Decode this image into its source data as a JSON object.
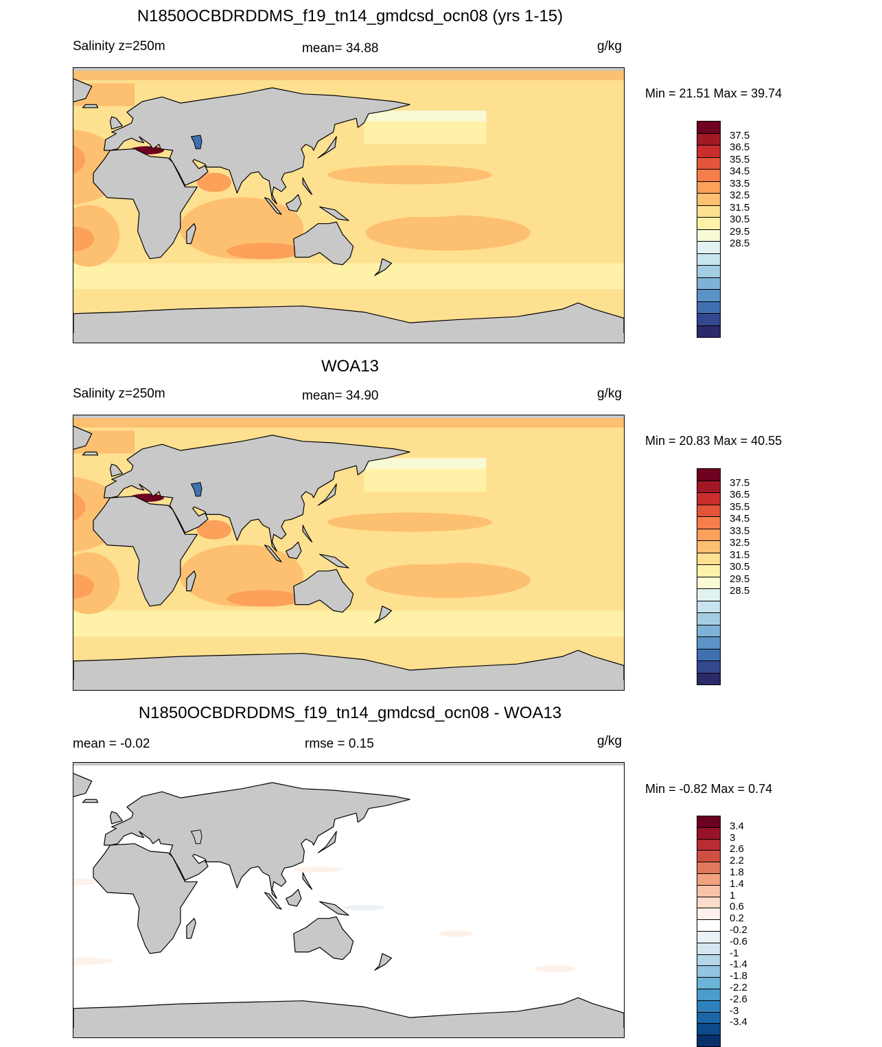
{
  "colors": {
    "land": "#c8c8c8",
    "salinity_palette": [
      "#2b2a6b",
      "#34478f",
      "#4170b0",
      "#5b93c6",
      "#7eb2d7",
      "#a4cde3",
      "#c8e4ef",
      "#e2f2f1",
      "#f8fad6",
      "#fff2a8",
      "#fee091",
      "#fdc070",
      "#fca05a",
      "#f67e4b",
      "#e3553b",
      "#c92e2e",
      "#a21926",
      "#6e0020"
    ],
    "diff_palette": [
      "#08306b",
      "#0d4a8c",
      "#1c66a8",
      "#2f82bd",
      "#4a9ccb",
      "#6cb3d8",
      "#93c6e0",
      "#b5d7e8",
      "#d4e6f0",
      "#ebf2f5",
      "#ffffff",
      "#fdf1ea",
      "#fbdcca",
      "#f8c3a7",
      "#f2a27f",
      "#e2785d",
      "#d04f43",
      "#b82c34",
      "#971428",
      "#6b0021"
    ]
  },
  "panels": [
    {
      "title": "N1850OCBDRDDMS_f19_tn14_gmdcsd_ocn08 (yrs 1-15)",
      "left_label": "Salinity z=250m",
      "center_label": "mean=  34.88",
      "units": "g/kg",
      "minmax": "Min =  21.51 Max =  39.74",
      "kind": "salinity",
      "colorbar_ticks": [
        "37.5",
        "36.5",
        "35.5",
        "34.5",
        "33.5",
        "32.5",
        "31.5",
        "30.5",
        "29.5",
        "28.5"
      ]
    },
    {
      "title": "WOA13",
      "left_label": "Salinity z=250m",
      "center_label": "mean=  34.90",
      "units": "g/kg",
      "minmax": "Min =  20.83 Max =  40.55",
      "kind": "salinity",
      "colorbar_ticks": [
        "37.5",
        "36.5",
        "35.5",
        "34.5",
        "33.5",
        "32.5",
        "31.5",
        "30.5",
        "29.5",
        "28.5"
      ]
    },
    {
      "title": "N1850OCBDRDDMS_f19_tn14_gmdcsd_ocn08 - WOA13",
      "left_label": "mean =  -0.02",
      "center_label": "rmse =   0.15",
      "units": "g/kg",
      "minmax": "Min =  -0.82 Max =   0.74",
      "kind": "difference",
      "colorbar_ticks": [
        "3.4",
        "3",
        "2.6",
        "2.2",
        "1.8",
        "1.4",
        "1",
        "0.6",
        "0.2",
        "-0.2",
        "-0.6",
        "-1",
        "-1.4",
        "-1.8",
        "-2.2",
        "-2.6",
        "-3",
        "-3.4"
      ]
    }
  ]
}
